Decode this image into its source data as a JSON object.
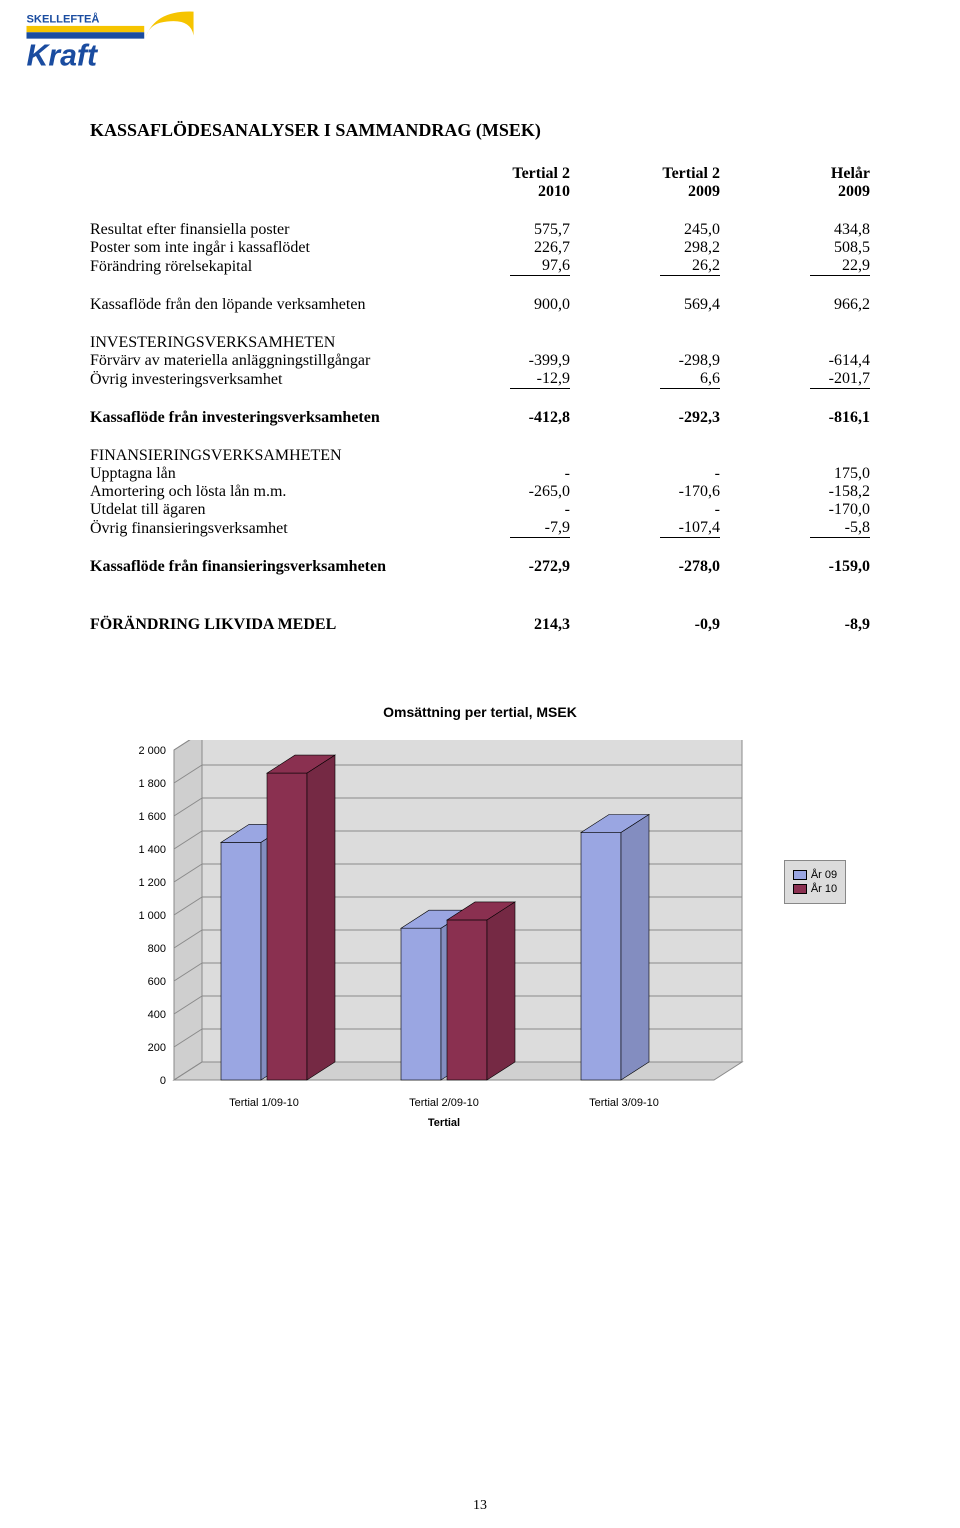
{
  "logo": {
    "text_top": "SKELLEFTEÅ",
    "text_bottom": "Kraft",
    "stripe_top": "#f6c400",
    "stripe_bottom": "#1a4ca0",
    "text_color": "#1a4ca0",
    "sun_color": "#f6c400"
  },
  "heading": "KASSAFLÖDESANALYSER I SAMMANDRAG (MSEK)",
  "col_headers": {
    "c1a": "Tertial 2",
    "c1b": "2010",
    "c2a": "Tertial 2",
    "c2b": "2009",
    "c3a": "Helår",
    "c3b": "2009"
  },
  "rows": [
    {
      "label": "Resultat efter finansiella poster",
      "v": [
        "575,7",
        "245,0",
        "434,8"
      ]
    },
    {
      "label": "Poster som inte ingår i kassaflödet",
      "v": [
        "226,7",
        "298,2",
        "508,5"
      ]
    },
    {
      "label": "Förändring rörelsekapital",
      "v": [
        "97,6",
        "26,2",
        "22,9"
      ],
      "underline": true
    }
  ],
  "kassa_lopande": {
    "label": "Kassaflöde från den löpande verksamheten",
    "v": [
      "900,0",
      "569,4",
      "966,2"
    ]
  },
  "inv_head": "INVESTERINGSVERKSAMHETEN",
  "inv_rows": [
    {
      "label": "Förvärv av materiella anläggningstillgångar",
      "v": [
        "-399,9",
        "-298,9",
        "-614,4"
      ]
    },
    {
      "label": "Övrig investeringsverksamhet",
      "v": [
        "-12,9",
        "6,6",
        "-201,7"
      ],
      "underline": true
    }
  ],
  "kassa_inv": {
    "label": "Kassaflöde från investeringsverksamheten",
    "v": [
      "-412,8",
      "-292,3",
      "-816,1"
    ],
    "bold": true
  },
  "fin_head": "FINANSIERINGSVERKSAMHETEN",
  "fin_rows": [
    {
      "label": "Upptagna lån",
      "v": [
        "-",
        "-",
        "175,0"
      ]
    },
    {
      "label": "Amortering och lösta lån m.m.",
      "v": [
        "-265,0",
        "-170,6",
        "-158,2"
      ]
    },
    {
      "label": "Utdelat till ägaren",
      "v": [
        "-",
        "-",
        "-170,0"
      ]
    },
    {
      "label": "Övrig finansieringsverksamhet",
      "v": [
        "-7,9",
        "-107,4",
        "-5,8"
      ],
      "underline": true
    }
  ],
  "kassa_fin": {
    "label": "Kassaflöde från finansieringsverksamheten",
    "v": [
      "-272,9",
      "-278,0",
      "-159,0"
    ],
    "bold": true
  },
  "forand": {
    "label": "FÖRÄNDRING LIKVIDA MEDEL",
    "v": [
      "214,3",
      "-0,9",
      "-8,9"
    ],
    "bold": true
  },
  "chart": {
    "title": "Omsättning per tertial, MSEK",
    "type": "bar-3d",
    "ylim": [
      0,
      2000
    ],
    "ytick_step": 200,
    "yticks": [
      "0",
      "200",
      "400",
      "600",
      "800",
      "1 000",
      "1 200",
      "1 400",
      "1 600",
      "1 800",
      "2 000"
    ],
    "categories": [
      "Tertial 1/09-10",
      "Tertial 2/09-10",
      "Tertial 3/09-10"
    ],
    "xlabel": "Tertial",
    "series": [
      {
        "name": "År 09",
        "color": "#9aa6e2",
        "values": [
          1440,
          920,
          1500
        ]
      },
      {
        "name": "År 10",
        "color": "#8a3050",
        "values": [
          1860,
          970,
          null
        ]
      }
    ],
    "floor_color": "#d0d0d0",
    "back_wall_color": "#dcdcdc",
    "side_wall_color": "#cfcfcf",
    "grid_color": "#8a8a8a",
    "bar_side_darken": 0.15,
    "axis_fontsize": 11,
    "axis_font_family": "Arial"
  },
  "legend_label_prefix": "",
  "pagenum": "13"
}
